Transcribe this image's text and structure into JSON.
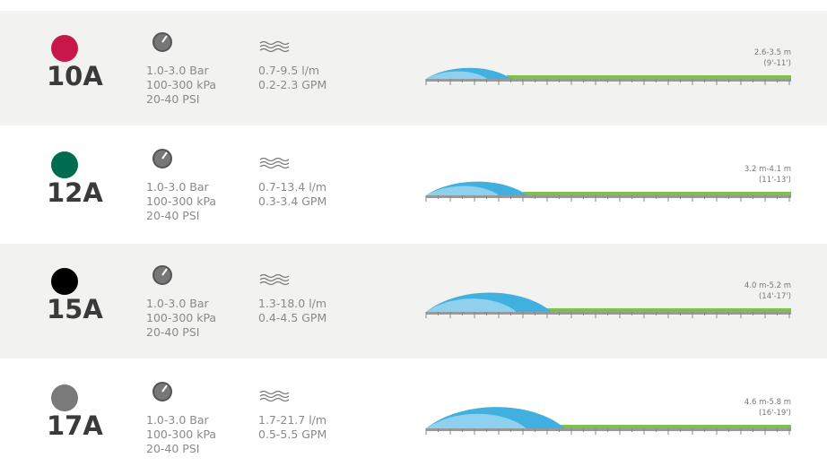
{
  "rows": [
    {
      "model": "10A",
      "dot_color": "#c8184a",
      "pressure": [
        "1.0-3.0 Bar",
        "100-300 kPa",
        "20-40 PSI"
      ],
      "flow": [
        "0.7-9.5 l/m",
        "0.2-2.3 GPM"
      ],
      "radius": "2.6-3.5 m",
      "radius_ft": "(9'-11')"
    },
    {
      "model": "12A",
      "dot_color": "#006b4f",
      "pressure": [
        "1.0-3.0 Bar",
        "100-300 kPa",
        "20-40 PSI"
      ],
      "flow": [
        "0.7-13.4 l/m",
        "0.3-3.4 GPM"
      ],
      "radius": "3.2 m-4.1 m",
      "radius_ft": "(11'-13')"
    },
    {
      "model": "15A",
      "dot_color": "#000000",
      "pressure": [
        "1.0-3.0 Bar",
        "100-300 kPa",
        "20-40 PSI"
      ],
      "flow": [
        "1.3-18.0 l/m",
        "0.4-4.5 GPM"
      ],
      "radius": "4.0 m-5.2 m",
      "radius_ft": "(14'-17')"
    },
    {
      "model": "17A",
      "dot_color": "#7a7a7a",
      "pressure": [
        "1.0-3.0 Bar",
        "100-300 kPa",
        "20-40 PSI"
      ],
      "flow": [
        "1.7-21.7 l/m",
        "0.5-5.5 GPM"
      ],
      "radius": "4.6 m-5.8 m",
      "radius_ft": "(16'-19')"
    }
  ]
}
